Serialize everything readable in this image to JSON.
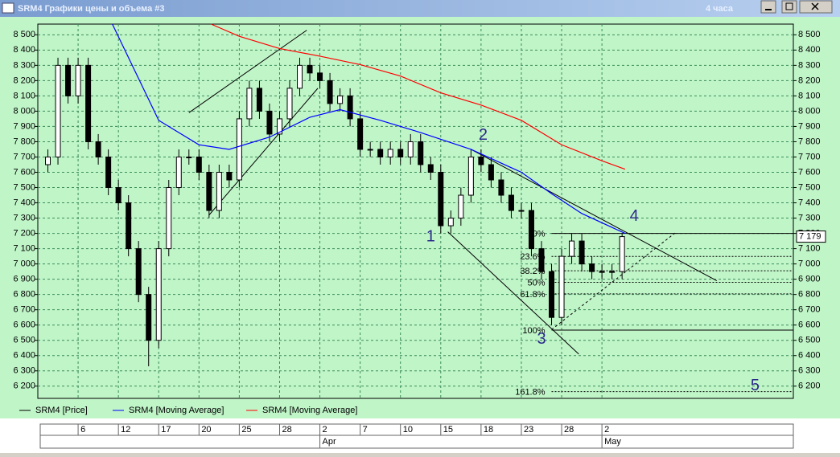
{
  "window": {
    "title": "SRM4 Графики цены и объема #3",
    "timeframe": "4 часа"
  },
  "chart_data": {
    "type": "candlestick",
    "x": [
      1,
      2,
      3,
      4,
      5,
      6,
      7,
      8,
      9,
      10,
      11,
      12,
      13,
      14,
      15,
      16,
      17,
      18,
      19,
      20,
      21,
      22,
      23,
      24,
      25,
      26,
      27,
      28,
      29,
      30,
      31,
      32,
      33,
      34,
      35,
      36,
      37,
      38,
      39,
      40,
      41,
      42,
      43,
      44,
      45,
      46,
      47,
      48,
      49,
      50,
      51,
      52,
      53,
      54,
      55,
      56,
      57,
      58
    ],
    "open": [
      7650,
      7700,
      8300,
      8100,
      8300,
      7800,
      7700,
      7500,
      7400,
      7100,
      6800,
      6500,
      7100,
      7500,
      7700,
      7700,
      7600,
      7350,
      7600,
      7550,
      7950,
      8150,
      8000,
      7850,
      7950,
      8150,
      8300,
      8250,
      8200,
      8050,
      8100,
      7950,
      7750,
      7750,
      7700,
      7750,
      7700,
      7800,
      7650,
      7600,
      7250,
      7300,
      7450,
      7700,
      7650,
      7550,
      7450,
      7350,
      7350,
      7100,
      6950,
      6650,
      7050,
      7150,
      7000,
      6950,
      6950,
      6950
    ],
    "high": [
      7750,
      8350,
      8350,
      8350,
      8350,
      7850,
      7750,
      7550,
      7450,
      7150,
      6850,
      7150,
      7550,
      7750,
      7750,
      7750,
      7650,
      7650,
      7650,
      8000,
      8200,
      8200,
      8050,
      8000,
      8200,
      8350,
      8350,
      8300,
      8250,
      8150,
      8150,
      8000,
      7800,
      7800,
      7800,
      7800,
      7850,
      7850,
      7700,
      7650,
      7350,
      7500,
      7750,
      7750,
      7700,
      7600,
      7500,
      7400,
      7400,
      7150,
      7000,
      7100,
      7200,
      7200,
      7050,
      7000,
      7000,
      7200
    ],
    "low": [
      7600,
      7650,
      8050,
      8050,
      7750,
      7650,
      7450,
      7350,
      7050,
      6750,
      6330,
      6450,
      7050,
      7450,
      7650,
      7550,
      7300,
      7300,
      7500,
      7500,
      7900,
      7950,
      7800,
      7800,
      7900,
      8100,
      8200,
      8150,
      8000,
      8000,
      7900,
      7700,
      7700,
      7650,
      7650,
      7650,
      7650,
      7600,
      7550,
      7200,
      7200,
      7250,
      7400,
      7600,
      7500,
      7400,
      7300,
      7300,
      7050,
      6900,
      6600,
      6600,
      7000,
      6950,
      6900,
      6900,
      6900,
      6900
    ],
    "close": [
      7700,
      8300,
      8100,
      8300,
      7800,
      7700,
      7500,
      7400,
      7100,
      6800,
      6500,
      7100,
      7500,
      7700,
      7700,
      7600,
      7350,
      7600,
      7550,
      7950,
      8150,
      8000,
      7850,
      7950,
      8150,
      8300,
      8250,
      8200,
      8050,
      8100,
      7950,
      7750,
      7750,
      7700,
      7750,
      7700,
      7800,
      7650,
      7600,
      7250,
      7300,
      7450,
      7700,
      7650,
      7550,
      7450,
      7350,
      7350,
      7100,
      6950,
      6650,
      7050,
      7150,
      7000,
      6950,
      6950,
      6950,
      7179
    ],
    "price_name": "SRM4 [Price]",
    "price_color": "#000000",
    "series": [
      {
        "name": "SRM4 [Moving Average]",
        "color": "#0000ff",
        "x": [
          7.4,
          12,
          16,
          19,
          23,
          27,
          30,
          34,
          38,
          43,
          48,
          51,
          54,
          58.3
        ],
        "values": [
          8570,
          7940,
          7780,
          7750,
          7830,
          7960,
          8010,
          7940,
          7860,
          7750,
          7600,
          7460,
          7330,
          7200
        ]
      },
      {
        "name": "SRM4 [Moving Average]",
        "color": "#ff0000",
        "x": [
          17.2,
          20,
          24,
          28,
          32,
          36,
          40,
          44,
          48,
          52,
          56,
          58.3
        ],
        "values": [
          8570,
          8490,
          8410,
          8360,
          8305,
          8230,
          8120,
          8040,
          7940,
          7780,
          7675,
          7620
        ]
      }
    ],
    "last_price": {
      "value": 7179,
      "label": "7 179"
    },
    "xlim": [
      0,
      75
    ],
    "xticks": [
      {
        "value": 4,
        "label": "6"
      },
      {
        "value": 8,
        "label": "12"
      },
      {
        "value": 12,
        "label": "17"
      },
      {
        "value": 16,
        "label": "20"
      },
      {
        "value": 20,
        "label": "25"
      },
      {
        "value": 24,
        "label": "28"
      },
      {
        "value": 28,
        "label": "2"
      },
      {
        "value": 32,
        "label": "7"
      },
      {
        "value": 36,
        "label": "10"
      },
      {
        "value": 40,
        "label": "15"
      },
      {
        "value": 44,
        "label": "18"
      },
      {
        "value": 48,
        "label": "23"
      },
      {
        "value": 52,
        "label": "28"
      },
      {
        "value": 56,
        "label": "2"
      }
    ],
    "months": [
      {
        "value": 28,
        "label": "Apr"
      },
      {
        "value": 56,
        "label": "May"
      }
    ],
    "ylim": [
      6120,
      8570
    ],
    "yticks": [
      {
        "value": 6200,
        "label": "6 200"
      },
      {
        "value": 6300,
        "label": "6 300"
      },
      {
        "value": 6400,
        "label": "6 400"
      },
      {
        "value": 6500,
        "label": "6 500"
      },
      {
        "value": 6600,
        "label": "6 600"
      },
      {
        "value": 6700,
        "label": "6 700"
      },
      {
        "value": 6800,
        "label": "6 800"
      },
      {
        "value": 6900,
        "label": "6 900"
      },
      {
        "value": 7000,
        "label": "7 000"
      },
      {
        "value": 7100,
        "label": "7 100"
      },
      {
        "value": 7200,
        "label": "7 200"
      },
      {
        "value": 7300,
        "label": "7 300"
      },
      {
        "value": 7400,
        "label": "7 400"
      },
      {
        "value": 7500,
        "label": "7 500"
      },
      {
        "value": 7600,
        "label": "7 600"
      },
      {
        "value": 7700,
        "label": "7 700"
      },
      {
        "value": 7800,
        "label": "7 800"
      },
      {
        "value": 7900,
        "label": "7 900"
      },
      {
        "value": 8000,
        "label": "8 000"
      },
      {
        "value": 8100,
        "label": "8 100"
      },
      {
        "value": 8200,
        "label": "8 200"
      },
      {
        "value": 8300,
        "label": "8 300"
      },
      {
        "value": 8400,
        "label": "8 400"
      },
      {
        "value": 8500,
        "label": "8 500"
      }
    ],
    "grid": true,
    "trendlines": [
      {
        "x": [
          15,
          26.7
        ],
        "y": [
          7990,
          8530
        ]
      },
      {
        "x": [
          17,
          27.8
        ],
        "y": [
          7320,
          8150
        ]
      },
      {
        "x": [
          43,
          67.4
        ],
        "y": [
          7750,
          6890
        ]
      },
      {
        "x": [
          40.7,
          53.7
        ],
        "y": [
          7210,
          6410
        ]
      },
      {
        "x": [
          51,
          63.4
        ],
        "y": [
          6570,
          7210
        ],
        "dashed": true
      }
    ],
    "fibonacci": {
      "x": 51,
      "levels": [
        {
          "label": "0%",
          "value": 7200
        },
        {
          "label": "23.6%",
          "value": 7049
        },
        {
          "label": "38.2%",
          "value": 6955
        },
        {
          "label": "50%",
          "value": 6880
        },
        {
          "label": "61.8%",
          "value": 6804
        },
        {
          "label": "100%",
          "value": 6567
        },
        {
          "label": "161.8%",
          "value": 6164
        }
      ]
    },
    "annotations": [
      {
        "text": "1",
        "x": 39,
        "y": 7175
      },
      {
        "text": "2",
        "x": 44.2,
        "y": 7840
      },
      {
        "text": "3",
        "x": 50,
        "y": 6505
      },
      {
        "text": "4",
        "x": 59.2,
        "y": 7310
      },
      {
        "text": "5",
        "x": 71.2,
        "y": 6200
      }
    ]
  }
}
